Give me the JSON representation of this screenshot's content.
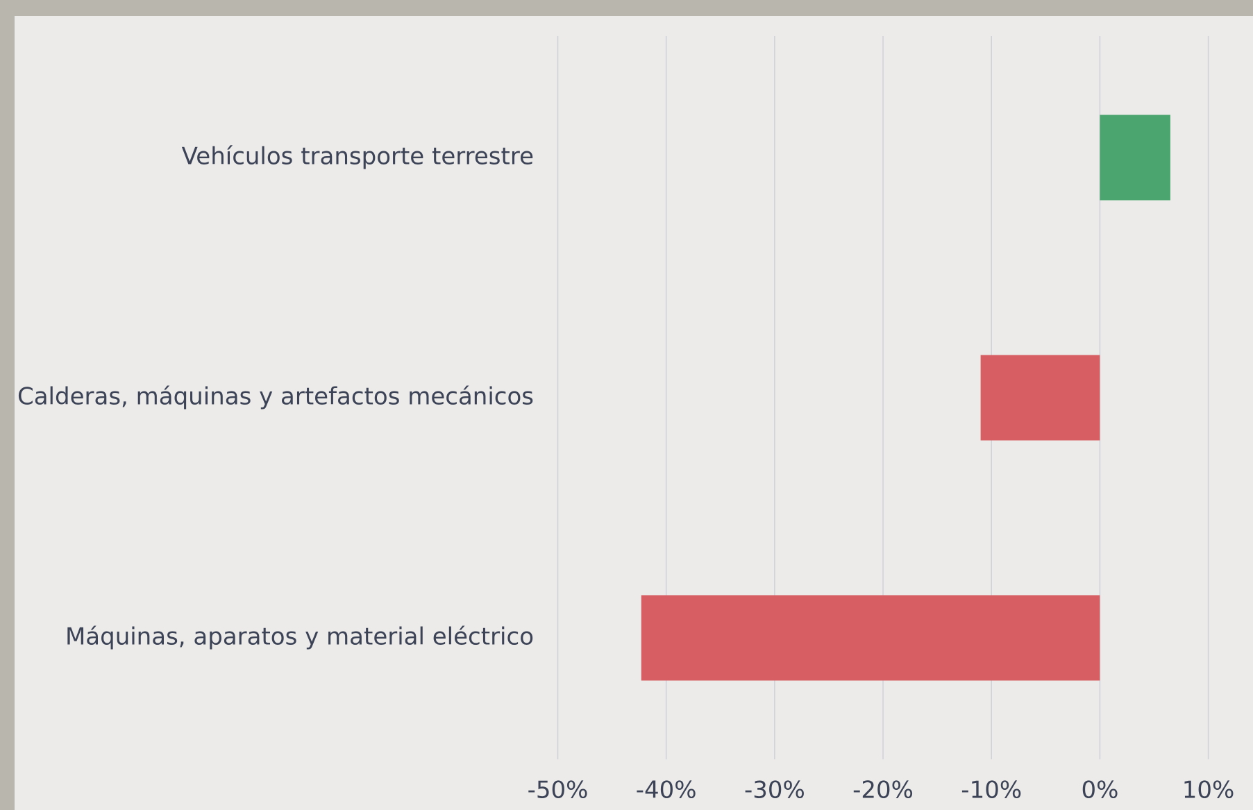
{
  "chart_data": {
    "type": "bar",
    "orientation": "horizontal",
    "categories": [
      "Vehículos transporte terrestre",
      "Calderas, máquinas y artefactos mecánicos",
      "Máquinas, aparatos y material eléctrico"
    ],
    "values": [
      6.5,
      -11.0,
      -42.3
    ],
    "colors": [
      "#4ba56f",
      "#d75f63",
      "#d75f63"
    ],
    "xlim": [
      -50,
      10
    ],
    "xticks": [
      {
        "value": -50,
        "label": "-50%"
      },
      {
        "value": -40,
        "label": "-40%"
      },
      {
        "value": -30,
        "label": "-30%"
      },
      {
        "value": -20,
        "label": "-20%"
      },
      {
        "value": -10,
        "label": "-10%"
      },
      {
        "value": 0,
        "label": "0%"
      },
      {
        "value": 10,
        "label": "10%"
      }
    ],
    "grid": true
  }
}
